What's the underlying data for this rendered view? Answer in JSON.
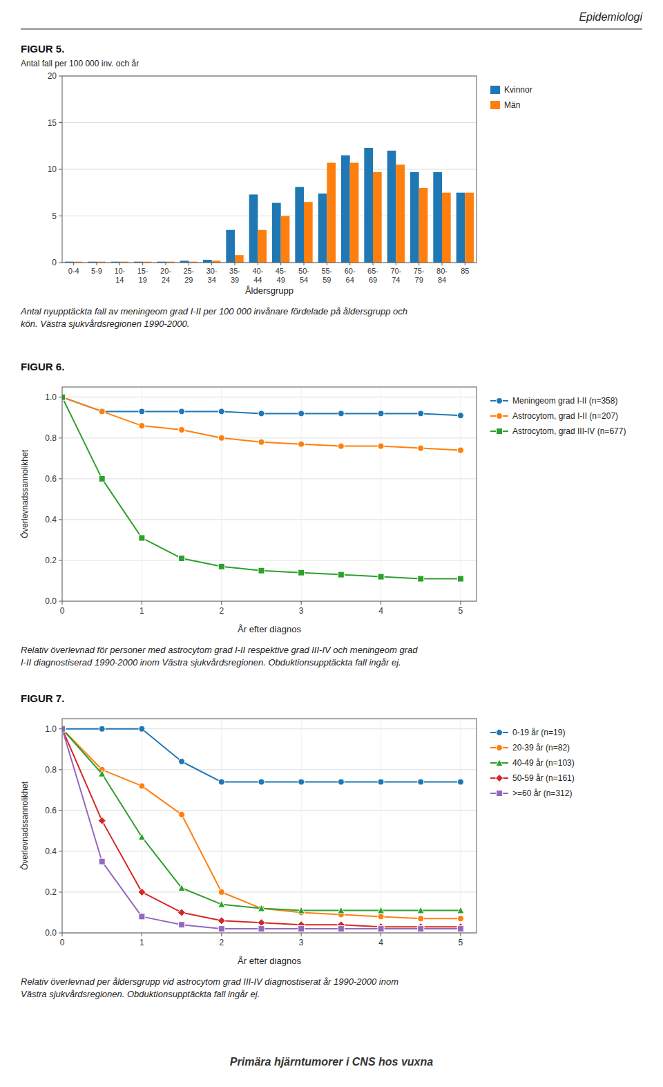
{
  "header": "Epidemiologi",
  "footer": "Primära hjärntumorer i CNS hos vuxna",
  "chart_data": [
    {
      "type": "bar",
      "title": "FIGUR 5.",
      "ylabel": "Antal fall per 100 000 inv. och år",
      "xlabel": "Åldersgrupp",
      "categories": [
        "0-4",
        "5-9",
        "10-\n14",
        "15-\n19",
        "20-\n24",
        "25-\n29",
        "30-\n34",
        "35-\n39",
        "40-\n44",
        "45-\n49",
        "50-\n54",
        "55-\n59",
        "60-\n64",
        "65-\n69",
        "70-\n74",
        "75-\n79",
        "80-\n84",
        "85"
      ],
      "series": [
        {
          "name": "Kvinnor",
          "color": "#1f77b4",
          "values": [
            0.1,
            0.1,
            0.1,
            0.1,
            0.1,
            0.2,
            0.3,
            3.5,
            7.3,
            6.4,
            8.1,
            7.4,
            11.5,
            12.3,
            12.0,
            9.7,
            9.7,
            7.5
          ]
        },
        {
          "name": "Män",
          "color": "#ff7f0e",
          "values": [
            0.1,
            0.1,
            0.1,
            0.1,
            0.1,
            0.1,
            0.2,
            0.8,
            3.5,
            5.0,
            6.5,
            10.7,
            10.7,
            9.7,
            10.5,
            8.0,
            7.5,
            7.5
          ]
        }
      ],
      "ylim": [
        0,
        20
      ],
      "yticks": [
        0,
        5,
        10,
        15,
        20
      ],
      "grid": "y",
      "legend": "right",
      "annotations": [
        "Antal nyupptäckta fall av meningeom grad I-II per 100 000 invånare fördelade på åldersgrupp och",
        "kön. Västra sjukvårdsregionen 1990-2000."
      ]
    },
    {
      "type": "line",
      "title": "FIGUR 6.",
      "ylabel": "Överlevnadssannolikhet",
      "xlabel": "År efter diagnos",
      "x": [
        0,
        0.5,
        1.0,
        1.5,
        2.0,
        2.5,
        3.0,
        3.5,
        4.0,
        4.5,
        5.0
      ],
      "series": [
        {
          "name": "Meningeom grad I-II (n=358)",
          "color": "#1f77b4",
          "marker": "circle",
          "values": [
            1.0,
            0.93,
            0.93,
            0.93,
            0.93,
            0.92,
            0.92,
            0.92,
            0.92,
            0.92,
            0.91
          ]
        },
        {
          "name": "Astrocytom, grad I-II (n=207)",
          "color": "#ff7f0e",
          "marker": "circle",
          "values": [
            1.0,
            0.93,
            0.86,
            0.84,
            0.8,
            0.78,
            0.77,
            0.76,
            0.76,
            0.75,
            0.74
          ]
        },
        {
          "name": "Astrocytom, grad III-IV (n=677)",
          "color": "#2ca02c",
          "marker": "square",
          "values": [
            1.0,
            0.6,
            0.31,
            0.21,
            0.17,
            0.15,
            0.14,
            0.13,
            0.12,
            0.11,
            0.11
          ]
        }
      ],
      "xlim": [
        0,
        5.2
      ],
      "xticks": [
        0,
        1,
        2,
        3,
        4,
        5
      ],
      "ylim": [
        0,
        1.05
      ],
      "yticks": [
        {
          "value": 0,
          "label": "0.0"
        },
        0.2,
        0.4,
        0.6,
        0.8,
        {
          "value": 1.0,
          "label": "1.0"
        }
      ],
      "grid": true,
      "legend": "right",
      "annotations": [
        "Relativ överlevnad för personer med astrocytom grad I-II respektive grad III-IV och meningeom grad",
        "I-II diagnostiserad 1990-2000 inom Västra sjukvårdsregionen. Obduktionsupptäckta fall ingår ej."
      ]
    },
    {
      "type": "line",
      "title": "FIGUR 7.",
      "ylabel": "Överlevnadssannolikhet",
      "xlabel": "År efter diagnos",
      "x": [
        0,
        0.5,
        1.0,
        1.5,
        2.0,
        2.5,
        3.0,
        3.5,
        4.0,
        4.5,
        5.0
      ],
      "series": [
        {
          "name": "0-19 år (n=19)",
          "color": "#1f77b4",
          "marker": "circle",
          "values": [
            1.0,
            1.0,
            1.0,
            0.84,
            0.74,
            0.74,
            0.74,
            0.74,
            0.74,
            0.74,
            0.74
          ]
        },
        {
          "name": "20-39 år (n=82)",
          "color": "#ff7f0e",
          "marker": "circle",
          "values": [
            1.0,
            0.8,
            0.72,
            0.58,
            0.2,
            0.12,
            0.1,
            0.09,
            0.08,
            0.07,
            0.07
          ]
        },
        {
          "name": "40-49 år (n=103)",
          "color": "#2ca02c",
          "marker": "triangle",
          "values": [
            1.0,
            0.78,
            0.47,
            0.22,
            0.14,
            0.12,
            0.11,
            0.11,
            0.11,
            0.11,
            0.11
          ]
        },
        {
          "name": "50-59 år (n=161)",
          "color": "#d62728",
          "marker": "diamond",
          "values": [
            1.0,
            0.55,
            0.2,
            0.1,
            0.06,
            0.05,
            0.04,
            0.04,
            0.03,
            0.03,
            0.03
          ]
        },
        {
          "name": ">=60 år (n=312)",
          "color": "#9467bd",
          "marker": "square",
          "values": [
            1.0,
            0.35,
            0.08,
            0.04,
            0.02,
            0.02,
            0.02,
            0.02,
            0.02,
            0.02,
            0.02
          ]
        }
      ],
      "xlim": [
        0,
        5.2
      ],
      "xticks": [
        0,
        1,
        2,
        3,
        4,
        5
      ],
      "ylim": [
        0,
        1.05
      ],
      "yticks": [
        {
          "value": 0,
          "label": "0.0"
        },
        0.2,
        0.4,
        0.6,
        0.8,
        {
          "value": 1.0,
          "label": "1.0"
        }
      ],
      "grid": true,
      "legend": "right",
      "annotations": [
        "Relativ överlevnad per åldersgrupp vid astrocytom grad III-IV diagnostiserat år 1990-2000 inom",
        "Västra sjukvårdsregionen. Obduktionsupptäckta fall ingår ej."
      ]
    }
  ]
}
